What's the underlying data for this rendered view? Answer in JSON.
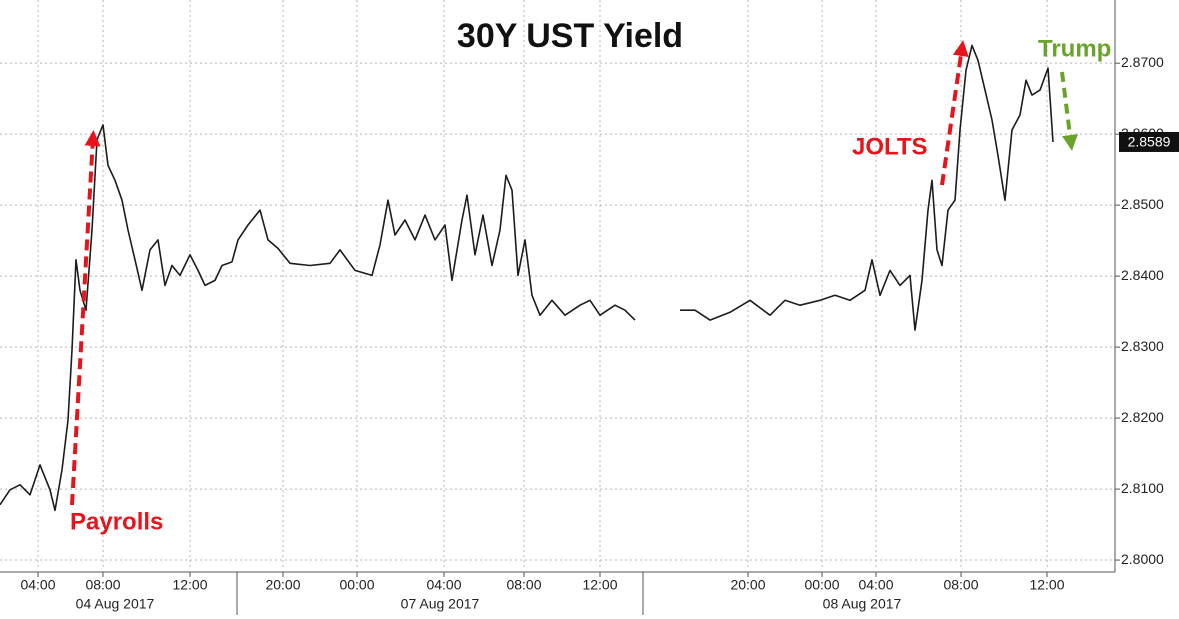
{
  "chart_data": {
    "type": "line",
    "title": "30Y UST Yield",
    "annotations": [
      "Payrolls",
      "JOLTS",
      "Trump"
    ],
    "x": [
      0,
      0.5,
      1,
      1.5,
      2,
      2.5,
      2.75,
      3.1,
      3.4,
      3.6,
      3.8,
      4,
      4.3,
      4.6,
      4.85,
      5.15,
      5.4,
      5.75,
      6.1,
      6.4,
      6.75,
      7.1,
      7.5,
      7.9,
      8.25,
      8.6,
      9,
      9.5,
      9.9,
      10.25,
      10.75,
      11.1,
      11.6,
      11.9,
      12.4,
      13,
      13.4,
      13.9,
      14.5,
      15.5,
      16.5,
      17,
      17.75,
      18.6,
      19,
      19.4,
      19.75,
      20.25,
      20.75,
      21.25,
      21.75,
      22.25,
      22.6,
      23.1,
      23.35,
      23.75,
      24.15,
      24.6,
      25,
      25.3,
      25.6,
      25.9,
      26.25,
      26.6,
      27,
      27.6,
      28.25,
      29,
      29.5,
      30,
      30.75,
      31.25,
      31.75,
      32.9,
      34,
      34.75,
      35.5,
      36.5,
      37.5,
      38.5,
      39.25,
      40,
      41,
      41.75,
      42.5,
      43.25,
      43.6,
      44,
      44.5,
      45,
      45.5,
      45.75,
      46.1,
      46.4,
      46.6,
      46.85,
      47.1,
      47.4,
      47.75,
      48,
      48.3,
      48.6,
      48.9,
      49.25,
      49.6,
      49.9,
      50.25,
      50.6,
      51,
      51.3,
      51.6,
      52,
      52.4,
      52.65
    ],
    "series": [
      {
        "name": "30Y UST Yield",
        "color": "#1c1c1c",
        "values": [
          2.8078,
          2.8099,
          2.8106,
          2.8092,
          2.8134,
          2.8099,
          2.807,
          2.8127,
          2.8197,
          2.8296,
          2.8423,
          2.838,
          2.8352,
          2.8465,
          2.8592,
          2.8613,
          2.8556,
          2.8535,
          2.8507,
          2.8465,
          2.8423,
          2.838,
          2.8437,
          2.8451,
          2.8387,
          2.8415,
          2.8401,
          2.843,
          2.8408,
          2.8387,
          2.8394,
          2.8415,
          2.842,
          2.8451,
          2.8472,
          2.8493,
          2.8451,
          2.8439,
          2.8418,
          2.8415,
          2.8418,
          2.8437,
          2.8408,
          2.8401,
          2.8444,
          2.8507,
          2.8458,
          2.8479,
          2.8451,
          2.8486,
          2.8451,
          2.8472,
          2.8394,
          2.8479,
          2.8514,
          2.843,
          2.8486,
          2.8415,
          2.8465,
          2.8542,
          2.8521,
          2.8401,
          2.8451,
          2.8373,
          2.8345,
          2.8366,
          2.8345,
          2.8359,
          2.8366,
          2.8345,
          2.8359,
          2.8352,
          2.8338,
          null,
          2.8352,
          2.8352,
          2.8338,
          2.8349,
          2.8366,
          2.8345,
          2.8366,
          2.8359,
          2.8366,
          2.8373,
          2.8366,
          2.838,
          2.8423,
          2.8373,
          2.8408,
          2.8387,
          2.8401,
          2.8324,
          2.8394,
          2.8493,
          2.8535,
          2.8437,
          2.8415,
          2.8493,
          2.8507,
          2.8606,
          2.869,
          2.8725,
          2.8704,
          2.8662,
          2.862,
          2.857,
          2.8507,
          2.8606,
          2.8627,
          2.8676,
          2.8655,
          2.8662,
          2.8693,
          2.8589
        ]
      }
    ],
    "last_value": {
      "value": 2.8589,
      "label": "2.8589"
    },
    "xlim": [
      0,
      55.75
    ],
    "xticks": [
      {
        "value": 1.9,
        "label": "04:00"
      },
      {
        "value": 5.15,
        "label": "08:00"
      },
      {
        "value": 9.5,
        "label": "12:00"
      },
      {
        "value": 14.15,
        "label": "20:00"
      },
      {
        "value": 17.85,
        "label": "00:00"
      },
      {
        "value": 22.2,
        "label": "04:00"
      },
      {
        "value": 26.2,
        "label": "08:00"
      },
      {
        "value": 30,
        "label": "12:00"
      },
      {
        "value": 37.4,
        "label": "20:00"
      },
      {
        "value": 41.1,
        "label": "00:00"
      },
      {
        "value": 43.8,
        "label": "04:00"
      },
      {
        "value": 48.05,
        "label": "08:00"
      },
      {
        "value": 52.35,
        "label": "12:00"
      }
    ],
    "date_labels": [
      {
        "value": 5.75,
        "label": "04 Aug 2017"
      },
      {
        "value": 22,
        "label": "07 Aug 2017"
      },
      {
        "value": 43.1,
        "label": "08 Aug 2017"
      }
    ],
    "ylim": [
      2.7986,
      2.8789
    ],
    "yticks": [
      {
        "value": 2.8,
        "label": "2.8000"
      },
      {
        "value": 2.81,
        "label": "2.8100"
      },
      {
        "value": 2.82,
        "label": "2.8200"
      },
      {
        "value": 2.83,
        "label": "2.8300"
      },
      {
        "value": 2.84,
        "label": "2.8400"
      },
      {
        "value": 2.85,
        "label": "2.8500"
      },
      {
        "value": 2.86,
        "label": "2.8600"
      },
      {
        "value": 2.87,
        "label": "2.8700"
      }
    ],
    "grid": true
  }
}
